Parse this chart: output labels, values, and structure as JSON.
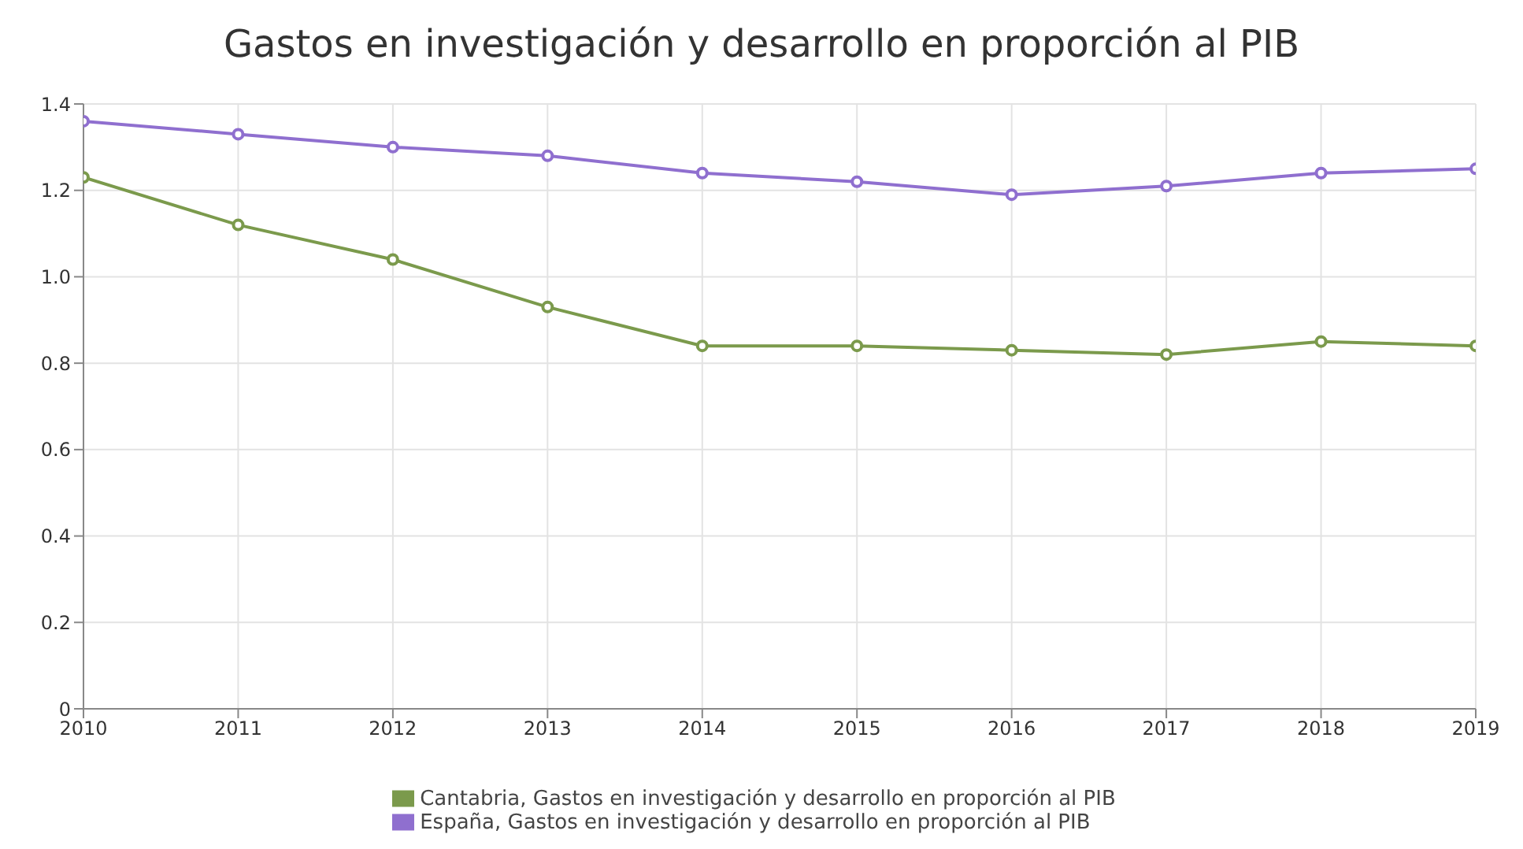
{
  "chart_data": {
    "type": "line",
    "title": "Gastos en investigación y desarrollo en proporción al PIB",
    "x": [
      2010,
      2011,
      2012,
      2013,
      2014,
      2015,
      2016,
      2017,
      2018,
      2019
    ],
    "xlim": [
      2010,
      2019
    ],
    "xticks": [
      2010,
      2011,
      2012,
      2013,
      2014,
      2015,
      2016,
      2017,
      2018,
      2019
    ],
    "ylim": [
      0,
      1.4
    ],
    "yticks": [
      0,
      0.2,
      0.4,
      0.6,
      0.8,
      {
        "value": 1,
        "label": "1.0"
      },
      1.2,
      1.4
    ],
    "grid": true,
    "legend": "bottom",
    "marker": "circle",
    "line_style": "solid",
    "series": [
      {
        "name": "Cantabria, Gastos en investigación y desarrollo en proporción al PIB",
        "color": "#7b9a4c",
        "values": [
          1.23,
          1.12,
          1.04,
          0.93,
          0.84,
          0.84,
          0.83,
          0.82,
          0.85,
          0.84
        ]
      },
      {
        "name": "España, Gastos en investigación y desarrollo en proporción al PIB",
        "color": "#8f6fcf",
        "values": [
          1.36,
          1.33,
          1.3,
          1.28,
          1.24,
          1.22,
          1.19,
          1.21,
          1.24,
          1.25
        ]
      }
    ]
  }
}
